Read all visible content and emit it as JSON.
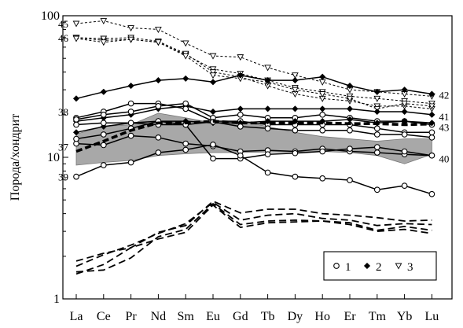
{
  "chart_data": {
    "type": "line",
    "ylabel": "Порода/хондрит",
    "xlabel": "",
    "yscale": "log",
    "ylim": [
      1,
      100
    ],
    "yticks": [
      "1",
      "10",
      "100"
    ],
    "categories": [
      "La",
      "Ce",
      "Pr",
      "Nd",
      "Sm",
      "Eu",
      "Gd",
      "Tb",
      "Dy",
      "Ho",
      "Er",
      "Tm",
      "Yb",
      "Lu"
    ],
    "legend": {
      "placement": "bottom-right",
      "items": [
        {
          "label": "1",
          "marker": "circle"
        },
        {
          "label": "2",
          "marker": "diamond"
        },
        {
          "label": "3",
          "marker": "triangle"
        }
      ]
    },
    "gray_field": {
      "upper": [
        14.6,
        16.5,
        17.0,
        20.5,
        19.0,
        17.5,
        18.0,
        16.5,
        15.0,
        14.0,
        13.5,
        13.0,
        13.5,
        13.5
      ],
      "lower": [
        8.8,
        9.2,
        9.5,
        10.3,
        10.6,
        10.8,
        10.8,
        10.9,
        10.9,
        11.0,
        10.8,
        10.3,
        9.0,
        10.5
      ]
    },
    "annotations": [
      {
        "text": "45",
        "series": "s45"
      },
      {
        "text": "46",
        "series": "s46"
      },
      {
        "text": "38",
        "series": "s38"
      },
      {
        "text": "37",
        "series": "s37"
      },
      {
        "text": "39",
        "series": "s39"
      },
      {
        "text": "42",
        "series": "s42"
      },
      {
        "text": "41",
        "series": "s41"
      },
      {
        "text": "43",
        "series": "s43"
      },
      {
        "text": "40",
        "series": "s40"
      }
    ],
    "series": [
      {
        "id": "s45",
        "marker": "triangle",
        "style": "dotted",
        "values": [
          88,
          92,
          82,
          80,
          64,
          52,
          51,
          43,
          38,
          34,
          30,
          29,
          28,
          27
        ]
      },
      {
        "id": "s46",
        "marker": "triangle",
        "style": "dotted",
        "values": [
          70,
          67,
          68,
          65,
          53,
          42,
          39,
          35,
          31,
          29,
          27,
          26,
          25,
          24
        ]
      },
      {
        "id": "s46b",
        "marker": "triangle",
        "style": "dotted",
        "values": [
          70,
          69,
          70,
          66,
          54,
          40,
          37,
          32,
          28,
          26,
          25,
          23,
          23,
          22
        ]
      },
      {
        "id": "s44",
        "marker": "triangle",
        "style": "dotted",
        "values": [
          69,
          65,
          68,
          65,
          52,
          38,
          36,
          34,
          30,
          28,
          26,
          22,
          24,
          23
        ]
      },
      {
        "id": "s42",
        "marker": "diamond",
        "style": "solid",
        "values": [
          26,
          29,
          32,
          35,
          36,
          34,
          38,
          35,
          35,
          37,
          32,
          29,
          30,
          28
        ]
      },
      {
        "id": "s41",
        "marker": "diamond",
        "style": "solid",
        "values": [
          18,
          19,
          20,
          22,
          23,
          21,
          22,
          22,
          22,
          22,
          22,
          21,
          21,
          20
        ]
      },
      {
        "id": "s38",
        "marker": "circle",
        "style": "solid",
        "values": [
          19,
          21,
          24,
          24,
          22,
          18,
          18,
          17,
          17,
          17,
          17,
          16,
          15,
          15
        ]
      },
      {
        "id": "s38b",
        "marker": "circle",
        "style": "solid",
        "values": [
          18.5,
          20,
          21,
          23,
          24,
          19,
          20,
          19,
          19,
          20,
          19,
          18,
          18,
          17
        ]
      },
      {
        "id": "s43",
        "marker": "diamond",
        "style": "thick-dashed",
        "values": [
          11,
          13,
          15.5,
          17.5,
          17.5,
          18,
          17.5,
          17.5,
          17.5,
          17.5,
          17.3,
          17.3,
          17,
          17.2
        ]
      },
      {
        "id": "s43b",
        "marker": "diamond",
        "style": "solid",
        "values": [
          15,
          16.5,
          17.5,
          18,
          18,
          17.5,
          17.5,
          18,
          18,
          18,
          18.5,
          17.5,
          18,
          17.5
        ]
      },
      {
        "id": "s37",
        "marker": "circle",
        "style": "solid",
        "values": [
          12.5,
          12.2,
          14.2,
          13.8,
          12.5,
          12.0,
          11.0,
          11.2,
          11.0,
          11.5,
          11.0,
          10.8,
          10.5,
          10.3
        ]
      },
      {
        "id": "s37b",
        "marker": "circle",
        "style": "solid",
        "values": [
          17,
          17.5,
          17.5,
          17,
          17,
          17.8,
          16.5,
          16,
          15.5,
          15.5,
          15.5,
          14.5,
          14.5,
          13.8
        ]
      },
      {
        "id": "s40",
        "marker": "circle",
        "style": "solid",
        "values": [
          13.5,
          14.5,
          16,
          18,
          17,
          9.8,
          9.8,
          10.5,
          10.7,
          11,
          11.5,
          11.8,
          11.0,
          10.3
        ]
      },
      {
        "id": "s39",
        "marker": "circle",
        "style": "solid",
        "values": [
          7.3,
          8.8,
          9.2,
          10.8,
          11.3,
          12.3,
          10.3,
          7.8,
          7.3,
          7.1,
          6.9,
          5.9,
          6.3,
          5.5
        ]
      },
      {
        "id": "d1",
        "marker": "none",
        "style": "dashed",
        "values": [
          1.85,
          2.1,
          2.3,
          2.95,
          3.3,
          4.9,
          4.05,
          4.3,
          4.3,
          4.0,
          3.9,
          3.75,
          3.55,
          3.6
        ]
      },
      {
        "id": "d2",
        "marker": "none",
        "style": "dashed",
        "values": [
          1.7,
          2.05,
          2.4,
          2.9,
          3.4,
          4.8,
          3.6,
          3.9,
          4.0,
          3.7,
          3.6,
          3.3,
          3.4,
          3.35
        ]
      },
      {
        "id": "d3",
        "marker": "none",
        "style": "dashed",
        "values": [
          1.55,
          1.6,
          1.95,
          2.75,
          3.1,
          4.7,
          3.35,
          3.55,
          3.6,
          3.55,
          3.45,
          3.05,
          3.25,
          3.05
        ]
      },
      {
        "id": "d4",
        "marker": "none",
        "style": "dashed",
        "values": [
          1.5,
          1.75,
          2.3,
          2.65,
          2.95,
          4.6,
          3.2,
          3.45,
          3.5,
          3.55,
          3.35,
          3.0,
          3.1,
          2.9
        ]
      }
    ]
  }
}
